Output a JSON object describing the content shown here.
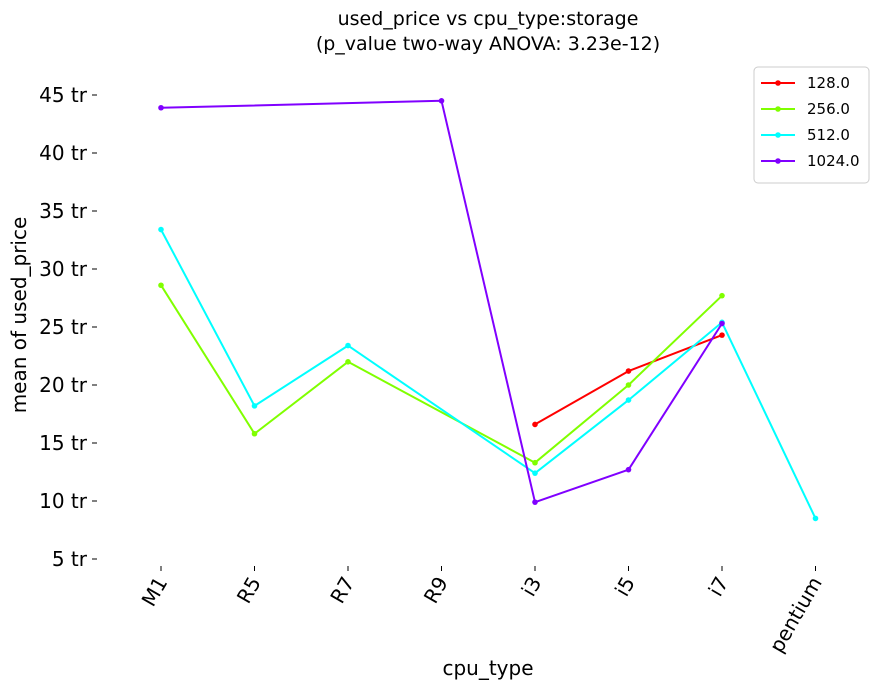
{
  "chart_data": {
    "type": "line",
    "title": "used_price vs cpu_type:storage",
    "subtitle": "(p_value two-way ANOVA: 3.23e-12)",
    "xlabel": "cpu_type",
    "ylabel": "mean of used_price",
    "categories": [
      "M1",
      "R5",
      "R7",
      "R9",
      "i3",
      "i5",
      "i7",
      "pentium"
    ],
    "y_ticks": [
      5,
      10,
      15,
      20,
      25,
      30,
      35,
      40,
      45
    ],
    "y_tick_labels": [
      "5 tr",
      "10 tr",
      "15 tr",
      "20 tr",
      "25 tr",
      "30 tr",
      "35 tr",
      "40 tr",
      "45 tr"
    ],
    "ylim": [
      5,
      46.5
    ],
    "grid": false,
    "legend_position": "top-right",
    "series": [
      {
        "name": "128.0",
        "color": "#ff0000",
        "values": [
          null,
          null,
          null,
          null,
          16.6,
          21.2,
          24.3,
          null
        ]
      },
      {
        "name": "256.0",
        "color": "#80ff00",
        "values": [
          28.6,
          15.8,
          22.0,
          null,
          13.3,
          20.0,
          27.7,
          null
        ]
      },
      {
        "name": "512.0",
        "color": "#00ffff",
        "values": [
          33.4,
          18.2,
          23.4,
          null,
          12.4,
          18.7,
          25.4,
          8.5
        ]
      },
      {
        "name": "1024.0",
        "color": "#8000ff",
        "values": [
          43.9,
          null,
          null,
          44.5,
          9.9,
          12.7,
          25.3,
          null
        ]
      }
    ]
  }
}
